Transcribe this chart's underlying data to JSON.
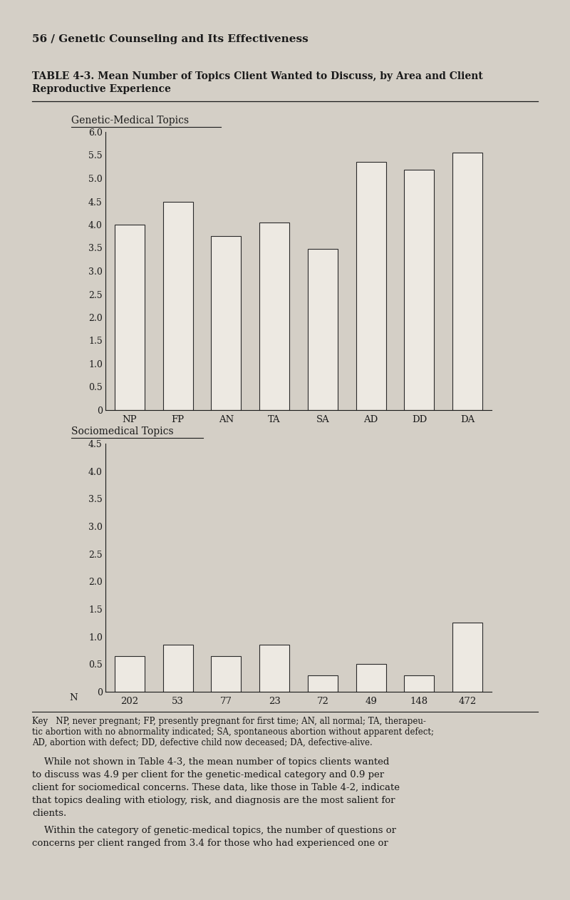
{
  "categories": [
    "NP",
    "FP",
    "AN",
    "TA",
    "SA",
    "AD",
    "DD",
    "DA"
  ],
  "n_values": [
    "202",
    "53",
    "77",
    "23",
    "72",
    "49",
    "148",
    "472"
  ],
  "genetic_medical_values": [
    4.0,
    4.5,
    3.75,
    4.05,
    3.48,
    5.35,
    5.18,
    5.55
  ],
  "sociomedical_values": [
    0.65,
    0.85,
    0.65,
    0.85,
    0.3,
    0.5,
    0.3,
    1.25
  ],
  "genetic_yticks": [
    0,
    0.5,
    1.0,
    1.5,
    2.0,
    2.5,
    3.0,
    3.5,
    4.0,
    4.5,
    5.0,
    5.5,
    6.0
  ],
  "sociomedical_yticks": [
    0,
    0.5,
    1.0,
    1.5,
    2.0,
    2.5,
    3.0,
    3.5,
    4.0,
    4.5
  ],
  "genetic_ylim": [
    0,
    6.0
  ],
  "sociomedical_ylim": [
    0,
    4.5
  ],
  "genetic_title": "Genetic-Medical Topics",
  "sociomedical_title": "Sociomedical Topics",
  "page_title": "56 / Genetic Counseling and Its Effectiveness",
  "table_title_line1": "TABLE 4-3. Mean Number of Topics Client Wanted to Discuss, by Area and Client",
  "table_title_line2": "Reproductive Experience",
  "bar_color": "#ede9e2",
  "bar_edgecolor": "#2a2a2a",
  "background_color": "#d4cfc6",
  "text_color": "#1a1a1a",
  "bar_width": 0.62
}
